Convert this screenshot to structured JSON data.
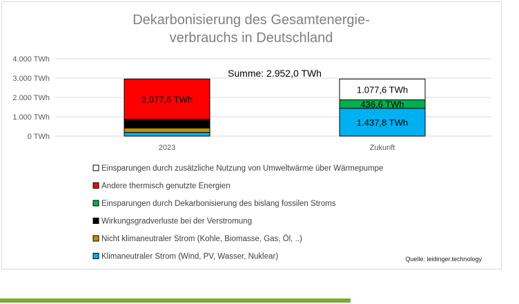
{
  "chart_data": {
    "type": "bar",
    "stacked": true,
    "title_lines": [
      "Dekarbonisierung des Gesamtenergie-",
      "verbrauchs in Deutschland"
    ],
    "categories": [
      "2023",
      "Zukunft"
    ],
    "yticks": [
      "4.000 TWh",
      "3.000 TWh",
      "2.000 TWh",
      "1.000 TWh",
      "0 TWh"
    ],
    "ylim": [
      0,
      4000
    ],
    "grid": true,
    "legend_position": "bottom",
    "sum_label": "Summe: 2.952,0 TWh",
    "series": [
      {
        "name": "Klimaneutraler Strom (Wind, PV, Wasser, Nuklear)",
        "color": "#00b0f0",
        "values": [
          190,
          1437.8
        ],
        "labels": [
          "",
          "1.437,8 TWh"
        ]
      },
      {
        "name": "Nicht klimaneutraler Strom (Kohle, Biomasse, Gas, Öl, ..)",
        "color": "#bf8f00",
        "values": [
          230,
          0
        ],
        "labels": [
          "",
          ""
        ]
      },
      {
        "name": "Wirkungsgradverluste bei der Verstromung",
        "color": "#000000",
        "values": [
          455,
          0
        ],
        "labels": [
          "",
          ""
        ]
      },
      {
        "name": "Einsparungen durch Dekarbonisierung des bislang fossilen Stroms",
        "color": "#00b050",
        "values": [
          0,
          436.6
        ],
        "labels": [
          "",
          "436,6 TWh"
        ]
      },
      {
        "name": "Andere thermisch genutzte Energien",
        "color": "#ff0000",
        "values": [
          2077.6,
          0
        ],
        "labels": [
          "2,077,6 TWh",
          ""
        ]
      },
      {
        "name": "Einsparungen durch zusätzliche Nutzung von Umweltwärme über Wärmepumpe",
        "color": "#ffffff",
        "values": [
          0,
          1077.6
        ],
        "labels": [
          "",
          "1.077,6 TWh"
        ]
      }
    ],
    "legend_order": [
      5,
      4,
      3,
      2,
      1,
      0
    ],
    "source": "Quelle: leidinger.technology"
  }
}
